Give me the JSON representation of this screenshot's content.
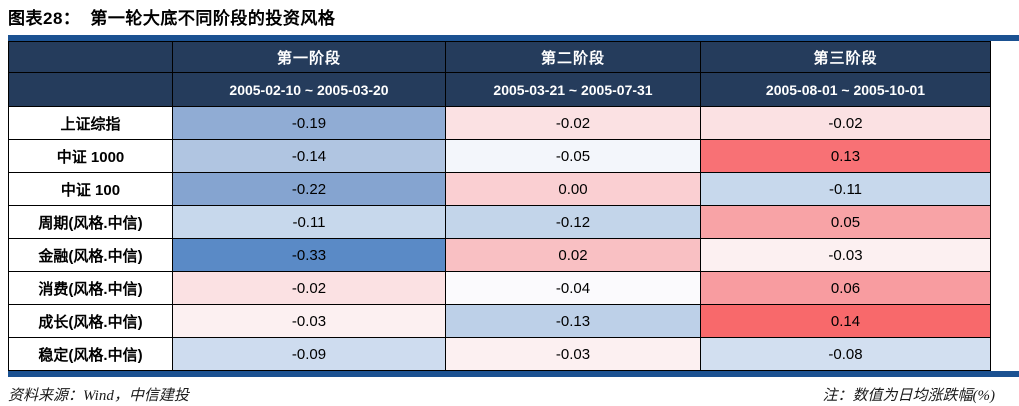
{
  "title": {
    "prefix": "图表28：",
    "text": "第一轮大底不同阶段的投资风格"
  },
  "table": {
    "corner_label": "",
    "stages": [
      {
        "name": "第一阶段",
        "period": "2005-02-10 ~ 2005-03-20"
      },
      {
        "name": "第二阶段",
        "period": "2005-03-21 ~ 2005-07-31"
      },
      {
        "name": "第三阶段",
        "period": "2005-08-01 ~ 2005-10-01"
      }
    ],
    "rows": [
      {
        "label": "上证综指",
        "values": [
          "-0.19",
          "-0.02",
          "-0.02"
        ],
        "colors": [
          "#90ACD4",
          "#FBE1E3",
          "#FBE1E3"
        ]
      },
      {
        "label": "中证 1000",
        "values": [
          "-0.14",
          "-0.05",
          "0.13"
        ],
        "colors": [
          "#B0C5E1",
          "#F3F6FB",
          "#F87175"
        ]
      },
      {
        "label": "中证 100",
        "values": [
          "-0.22",
          "0.00",
          "-0.11"
        ],
        "colors": [
          "#85A4D0",
          "#FACFD2",
          "#C7D8EC"
        ]
      },
      {
        "label": "周期(风格.中信)",
        "values": [
          "-0.11",
          "-0.12",
          "0.05"
        ],
        "colors": [
          "#C7D8EC",
          "#C3D5EA",
          "#F8A3A6"
        ]
      },
      {
        "label": "金融(风格.中信)",
        "values": [
          "-0.33",
          "0.02",
          "-0.03"
        ],
        "colors": [
          "#5A8AC6",
          "#F9C0C3",
          "#FCF0F1"
        ]
      },
      {
        "label": "消费(风格.中信)",
        "values": [
          "-0.02",
          "-0.04",
          "0.06"
        ],
        "colors": [
          "#FBE1E3",
          "#FBFAFD",
          "#F89CA0"
        ]
      },
      {
        "label": "成长(风格.中信)",
        "values": [
          "-0.03",
          "-0.13",
          "0.14"
        ],
        "colors": [
          "#FCF0F1",
          "#BDD0E8",
          "#F8696B"
        ]
      },
      {
        "label": "稳定(风格.中信)",
        "values": [
          "-0.09",
          "-0.03",
          "-0.08"
        ],
        "colors": [
          "#CEDCEF",
          "#FCF0F1",
          "#D2DFF0"
        ]
      }
    ]
  },
  "footer": {
    "source": "资料来源：Wind，中信建投",
    "note": "注：数值为日均涨跌幅(%)"
  },
  "colors": {
    "header_bg": "#253C5C",
    "rule_bar": "#1B5191",
    "cell_border": "#000000",
    "scale_min_blue": "#5A8AC6",
    "scale_mid_white": "#FCFCFF",
    "scale_max_red": "#F8696B"
  },
  "chart_data": {
    "type": "heatmap",
    "title": "图表28： 第一轮大底不同阶段的投资风格",
    "columns": [
      {
        "stage": "第一阶段",
        "period": "2005-02-10 ~ 2005-03-20"
      },
      {
        "stage": "第二阶段",
        "period": "2005-03-21 ~ 2005-07-31"
      },
      {
        "stage": "第三阶段",
        "period": "2005-08-01 ~ 2005-10-01"
      }
    ],
    "row_labels": [
      "上证综指",
      "中证 1000",
      "中证 100",
      "周期(风格.中信)",
      "金融(风格.中信)",
      "消费(风格.中信)",
      "成长(风格.中信)",
      "稳定(风格.中信)"
    ],
    "values": [
      [
        -0.19,
        -0.02,
        -0.02
      ],
      [
        -0.14,
        -0.05,
        0.13
      ],
      [
        -0.22,
        0.0,
        -0.11
      ],
      [
        -0.11,
        -0.12,
        0.05
      ],
      [
        -0.33,
        0.02,
        -0.03
      ],
      [
        -0.02,
        -0.04,
        0.06
      ],
      [
        -0.03,
        -0.13,
        0.14
      ],
      [
        -0.09,
        -0.03,
        -0.08
      ]
    ],
    "color_scale": {
      "min": "#5A8AC6",
      "mid": "#FCFCFF",
      "max": "#F8696B",
      "meaning": "blue = negative, red = positive"
    },
    "unit_note": "注：数值为日均涨跌幅(%)",
    "source": "资料来源：Wind，中信建投"
  }
}
